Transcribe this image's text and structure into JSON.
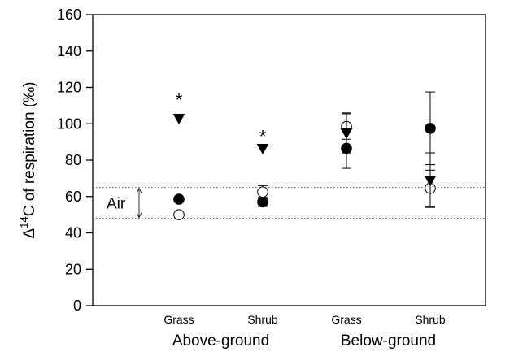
{
  "chart_data": {
    "type": "scatter",
    "ylabel_prefix": "Δ",
    "ylabel_sup": "14",
    "ylabel_rest": "C of respiration (‰)",
    "ylim": [
      0,
      160
    ],
    "yticks": [
      0,
      20,
      40,
      60,
      80,
      100,
      120,
      140,
      160
    ],
    "categories": [
      "Grass",
      "Shrub",
      "Grass",
      "Shrub"
    ],
    "groups": [
      {
        "label": "Above-ground",
        "categories": [
          0,
          1
        ]
      },
      {
        "label": "Below-ground",
        "categories": [
          2,
          3
        ]
      }
    ],
    "series": [
      {
        "marker": "filled-circle",
        "values": [
          58.5,
          57,
          86.5,
          97.5
        ],
        "errors": [
          0,
          2.5,
          11,
          20
        ]
      },
      {
        "marker": "open-circle",
        "values": [
          50,
          62.5,
          98.5,
          64.5
        ],
        "errors": [
          0,
          3.5,
          7,
          10
        ]
      },
      {
        "marker": "filled-triangle-down",
        "values": [
          103,
          86.5,
          95,
          69
        ],
        "errors": [
          0,
          0,
          11,
          15
        ]
      }
    ],
    "annotations": {
      "significance": [
        {
          "category": 0,
          "y": 115,
          "text": "*"
        },
        {
          "category": 1,
          "y": 95,
          "text": "*"
        }
      ],
      "air_band": {
        "label": "Air",
        "low": 48,
        "high": 65
      }
    }
  }
}
